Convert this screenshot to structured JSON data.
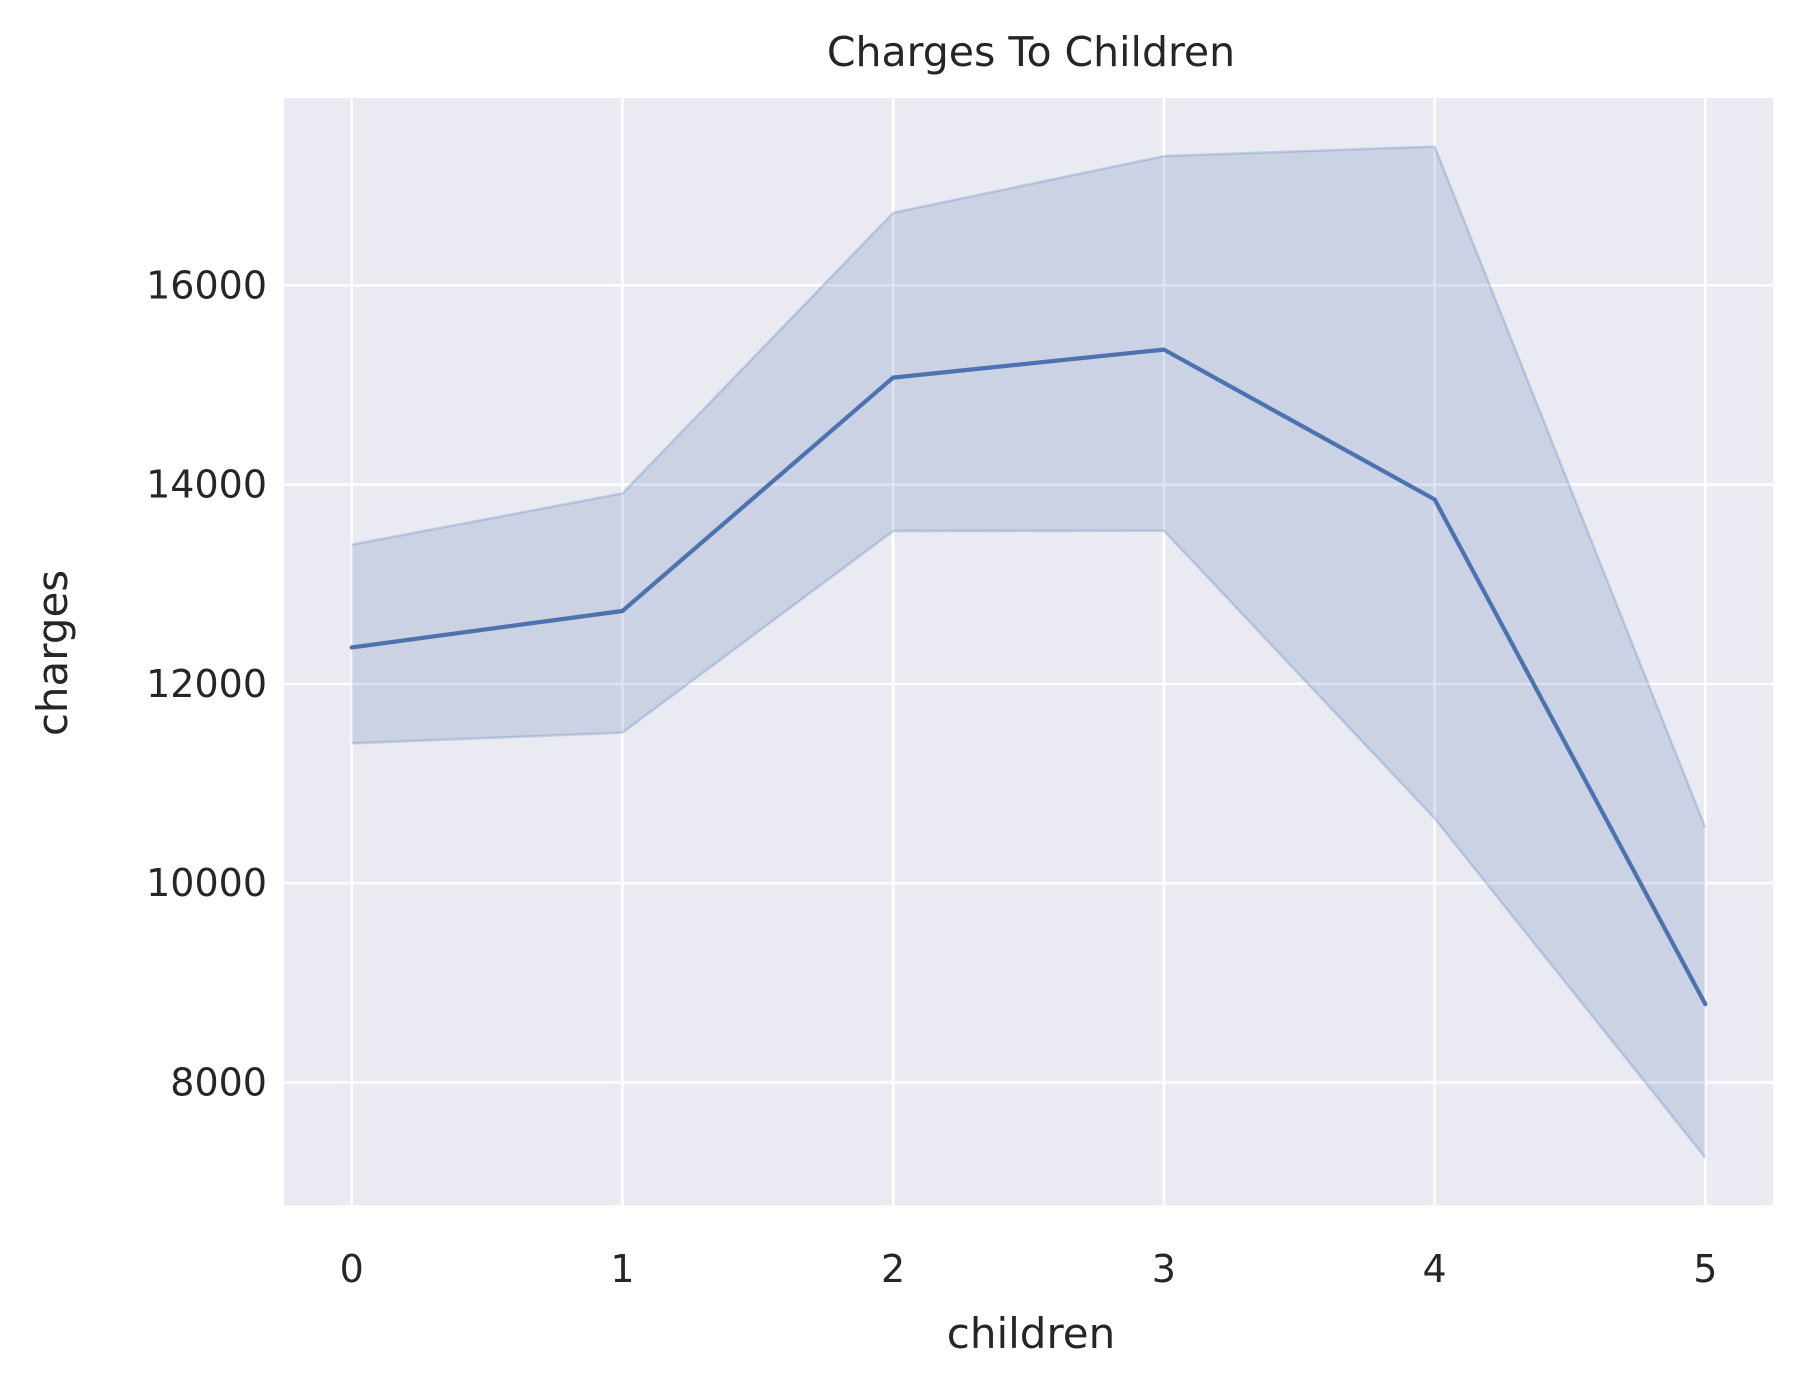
{
  "chart_data": {
    "type": "line",
    "title": "Charges To Children",
    "xlabel": "children",
    "ylabel": "charges",
    "x": [
      0,
      1,
      2,
      3,
      4,
      5
    ],
    "xticks": [
      "0",
      "1",
      "2",
      "3",
      "4",
      "5"
    ],
    "yticks": [
      "8000",
      "10000",
      "12000",
      "14000",
      "16000"
    ],
    "xlim": [
      -0.25,
      5.25
    ],
    "ylim": [
      6770,
      17880
    ],
    "grid": true,
    "series": [
      {
        "values": [
          12366,
          12731,
          15074,
          15355,
          13851,
          8786
        ],
        "ci_lower": [
          11403,
          11510,
          13533,
          13537,
          10650,
          7245
        ],
        "ci_upper": [
          13397,
          13912,
          16728,
          17297,
          17393,
          10559
        ]
      }
    ],
    "colors": {
      "line": "#4c72b0",
      "band": "#4c72b0",
      "plot_background": "#eaeaf2",
      "grid": "#ffffff",
      "text": "#262626"
    }
  }
}
